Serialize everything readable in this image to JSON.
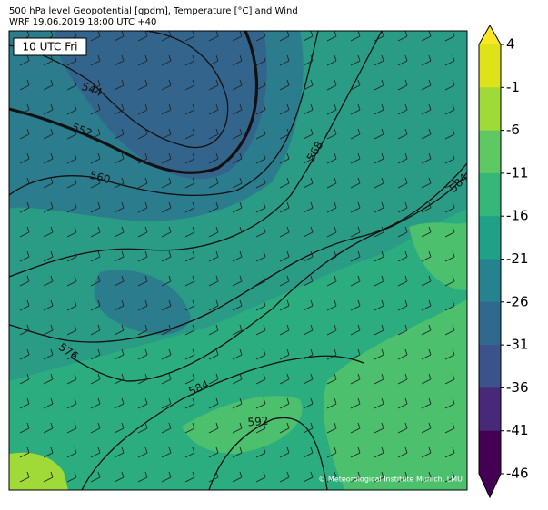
{
  "header": {
    "title": "500 hPa level Geopotential [gpdm], Temperature [°C] and Wind",
    "subtitle": "WRF 19.06.2019 18:00 UTC +40"
  },
  "time_label": "10 UTC Fri",
  "contour_labels": [
    544,
    552,
    560,
    568,
    584,
    576,
    584,
    592
  ],
  "credit": "© Meteorological Institute Munich, LMU",
  "colorbar": {
    "ticks": [
      4,
      -1,
      -6,
      -11,
      -16,
      -21,
      -26,
      -31,
      -36,
      -41,
      -46
    ],
    "colors": [
      "#fde725",
      "#dde318",
      "#a0da39",
      "#5ec962",
      "#35b779",
      "#1fa188",
      "#26828e",
      "#31688e",
      "#3b528b",
      "#482878",
      "#440154",
      "#440154"
    ]
  }
}
